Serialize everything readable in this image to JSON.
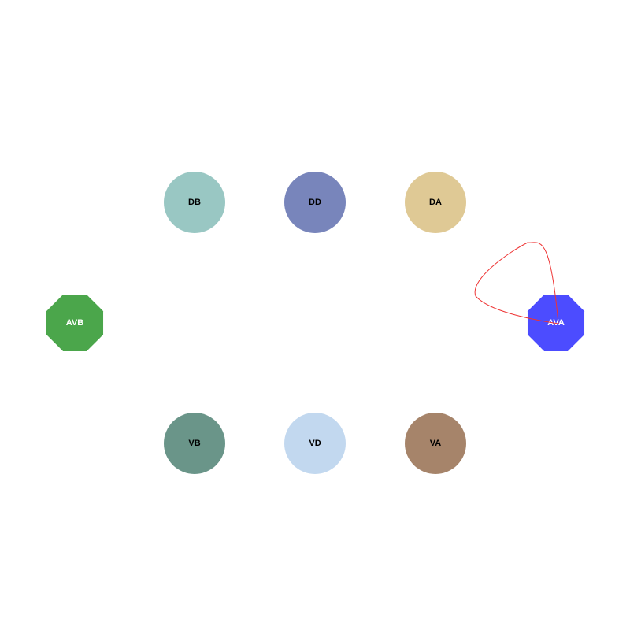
{
  "nodes": [
    {
      "id": "DB",
      "label": "DB",
      "shape": "circle",
      "fill": "#99c7c3",
      "text_color": "#000000"
    },
    {
      "id": "DD",
      "label": "DD",
      "shape": "circle",
      "fill": "#7885bb",
      "text_color": "#000000"
    },
    {
      "id": "DA",
      "label": "DA",
      "shape": "circle",
      "fill": "#dfc995",
      "text_color": "#000000"
    },
    {
      "id": "AVB",
      "label": "AVB",
      "shape": "octagon",
      "fill": "#4ba64b",
      "text_color": "#ffffff"
    },
    {
      "id": "AVA",
      "label": "AVA",
      "shape": "octagon",
      "fill": "#4c4cff",
      "text_color": "#ffffff"
    },
    {
      "id": "VB",
      "label": "VB",
      "shape": "circle",
      "fill": "#6a9589",
      "text_color": "#000000"
    },
    {
      "id": "VD",
      "label": "VD",
      "shape": "circle",
      "fill": "#c2d8ef",
      "text_color": "#000000"
    },
    {
      "id": "VA",
      "label": "VA",
      "shape": "circle",
      "fill": "#a6846a",
      "text_color": "#000000"
    }
  ],
  "edges": [
    {
      "from": "AVA",
      "to": "AVA",
      "type": "self-loop",
      "color": "#ee3333"
    }
  ]
}
